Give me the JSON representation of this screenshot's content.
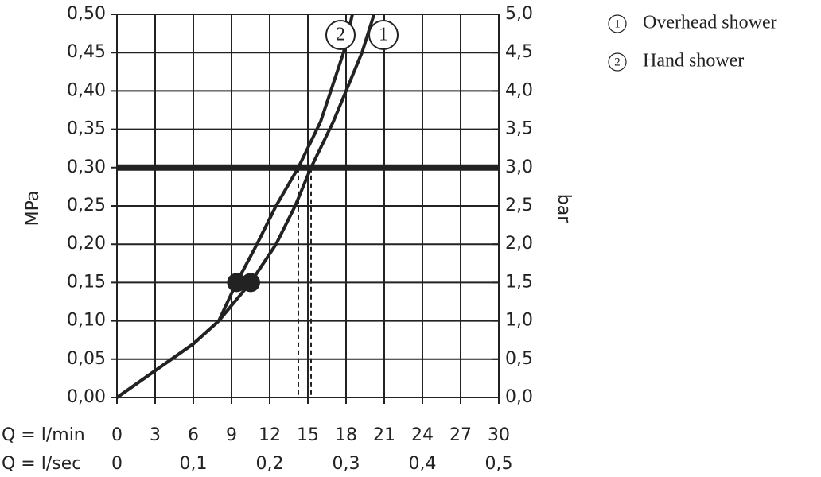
{
  "chart_data": {
    "type": "line",
    "y_label": "MPa",
    "y2_label": "bar",
    "x_label": "Q = l/min",
    "x2_label": "Q = l/sec",
    "xlim": [
      0,
      30
    ],
    "xticks": [
      0,
      3,
      6,
      9,
      12,
      15,
      18,
      21,
      24,
      27,
      30
    ],
    "x2lim": [
      0,
      0.5
    ],
    "x2ticks": [
      0,
      {
        "value": 0.1,
        "label": "0,1"
      },
      {
        "value": 0.2,
        "label": "0,2"
      },
      {
        "value": 0.3,
        "label": "0,3"
      },
      {
        "value": 0.4,
        "label": "0,4"
      },
      {
        "value": 0.5,
        "label": "0,5"
      }
    ],
    "ylim": [
      0,
      0.5
    ],
    "yticks": [
      {
        "value": 0,
        "label": "0,00"
      },
      {
        "value": 0.05,
        "label": "0,05"
      },
      {
        "value": 0.1,
        "label": "0,10"
      },
      {
        "value": 0.15,
        "label": "0,15"
      },
      {
        "value": 0.2,
        "label": "0,20"
      },
      {
        "value": 0.25,
        "label": "0,25"
      },
      {
        "value": 0.3,
        "label": "0,30"
      },
      {
        "value": 0.35,
        "label": "0,35"
      },
      {
        "value": 0.4,
        "label": "0,40"
      },
      {
        "value": 0.45,
        "label": "0,45"
      },
      {
        "value": 0.5,
        "label": "0,50"
      }
    ],
    "y2lim": [
      0,
      5
    ],
    "y2ticks": [
      {
        "value": 0,
        "label": "0,0"
      },
      {
        "value": 0.5,
        "label": "0,5"
      },
      {
        "value": 1,
        "label": "1,0"
      },
      {
        "value": 1.5,
        "label": "1,5"
      },
      {
        "value": 2,
        "label": "2,0"
      },
      {
        "value": 2.5,
        "label": "2,5"
      },
      {
        "value": 3,
        "label": "3,0"
      },
      {
        "value": 3.5,
        "label": "3,5"
      },
      {
        "value": 4,
        "label": "4,0"
      },
      {
        "value": 4.5,
        "label": "4,5"
      },
      {
        "value": 5,
        "label": "5,0"
      }
    ],
    "grid": true,
    "reference_y": 0.3,
    "color": "#222222",
    "series": [
      {
        "name": "Overhead shower",
        "label": "1",
        "marker_index": 4,
        "x": [
          0,
          3,
          6,
          8,
          10.5,
          12.5,
          14,
          15.25,
          17,
          19.25,
          20.2
        ],
        "values": [
          0,
          0.035,
          0.07,
          0.1,
          0.15,
          0.2,
          0.25,
          0.3,
          0.36,
          0.45,
          0.5
        ]
      },
      {
        "name": "Hand shower",
        "label": "2",
        "marker_index": 4,
        "x": [
          0,
          3,
          6,
          8,
          9.4,
          11,
          12.5,
          14.25,
          16,
          17.8,
          18.5
        ],
        "values": [
          0,
          0.035,
          0.07,
          0.1,
          0.15,
          0.2,
          0.25,
          0.3,
          0.36,
          0.45,
          0.5
        ]
      }
    ]
  }
}
